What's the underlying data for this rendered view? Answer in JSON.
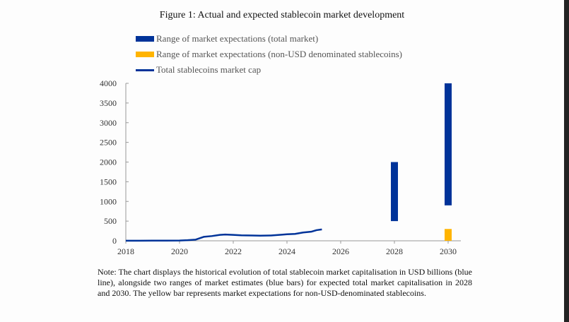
{
  "chart_data": {
    "type": "line",
    "title": "Figure 1: Actual and expected stablecoin market development",
    "xlim": [
      2018,
      2030
    ],
    "ylim": [
      0,
      4000
    ],
    "xticks": [
      2018,
      2020,
      2022,
      2024,
      2026,
      2028,
      2030
    ],
    "yticks": [
      0,
      500,
      1000,
      1500,
      2000,
      2500,
      3000,
      3500,
      4000
    ],
    "grid": false,
    "legend_placement": "top-left",
    "legend": [
      {
        "label": "Range of market expectations (total market)",
        "color": "#003399",
        "kind": "bar"
      },
      {
        "label": "Range of market expectations (non-USD denominated stablecoins)",
        "color": "#ffb400",
        "kind": "bar"
      },
      {
        "label": "Total stablecoins market cap",
        "color": "#003399",
        "kind": "line"
      }
    ],
    "line_series": {
      "name": "Total stablecoins market cap",
      "x": [
        2018,
        2018.5,
        2019,
        2019.5,
        2020,
        2020.3,
        2020.6,
        2020.9,
        2021.2,
        2021.5,
        2021.7,
        2022.0,
        2022.3,
        2022.7,
        2023.0,
        2023.4,
        2023.8,
        2024.0,
        2024.3,
        2024.6,
        2024.9,
        2025.1,
        2025.3
      ],
      "y": [
        2,
        3,
        4,
        5,
        6,
        15,
        30,
        100,
        120,
        150,
        160,
        150,
        140,
        135,
        130,
        135,
        155,
        165,
        175,
        210,
        230,
        270,
        290
      ]
    },
    "range_bars": [
      {
        "x": 2028,
        "low": 500,
        "high": 2000,
        "color": "#003399"
      },
      {
        "x": 2030,
        "low": 900,
        "high": 4000,
        "color": "#003399"
      },
      {
        "x": 2030,
        "low": 0,
        "high": 300,
        "color": "#ffb400"
      }
    ]
  },
  "note": "Note: The chart displays the historical evolution of total stablecoin market capitalisation in USD billions (blue line), alongside two ranges of market estimates (blue bars) for expected total market capitalisation in 2028 and 2030. The yellow bar represents market expectations for non-USD-denominated stablecoins."
}
